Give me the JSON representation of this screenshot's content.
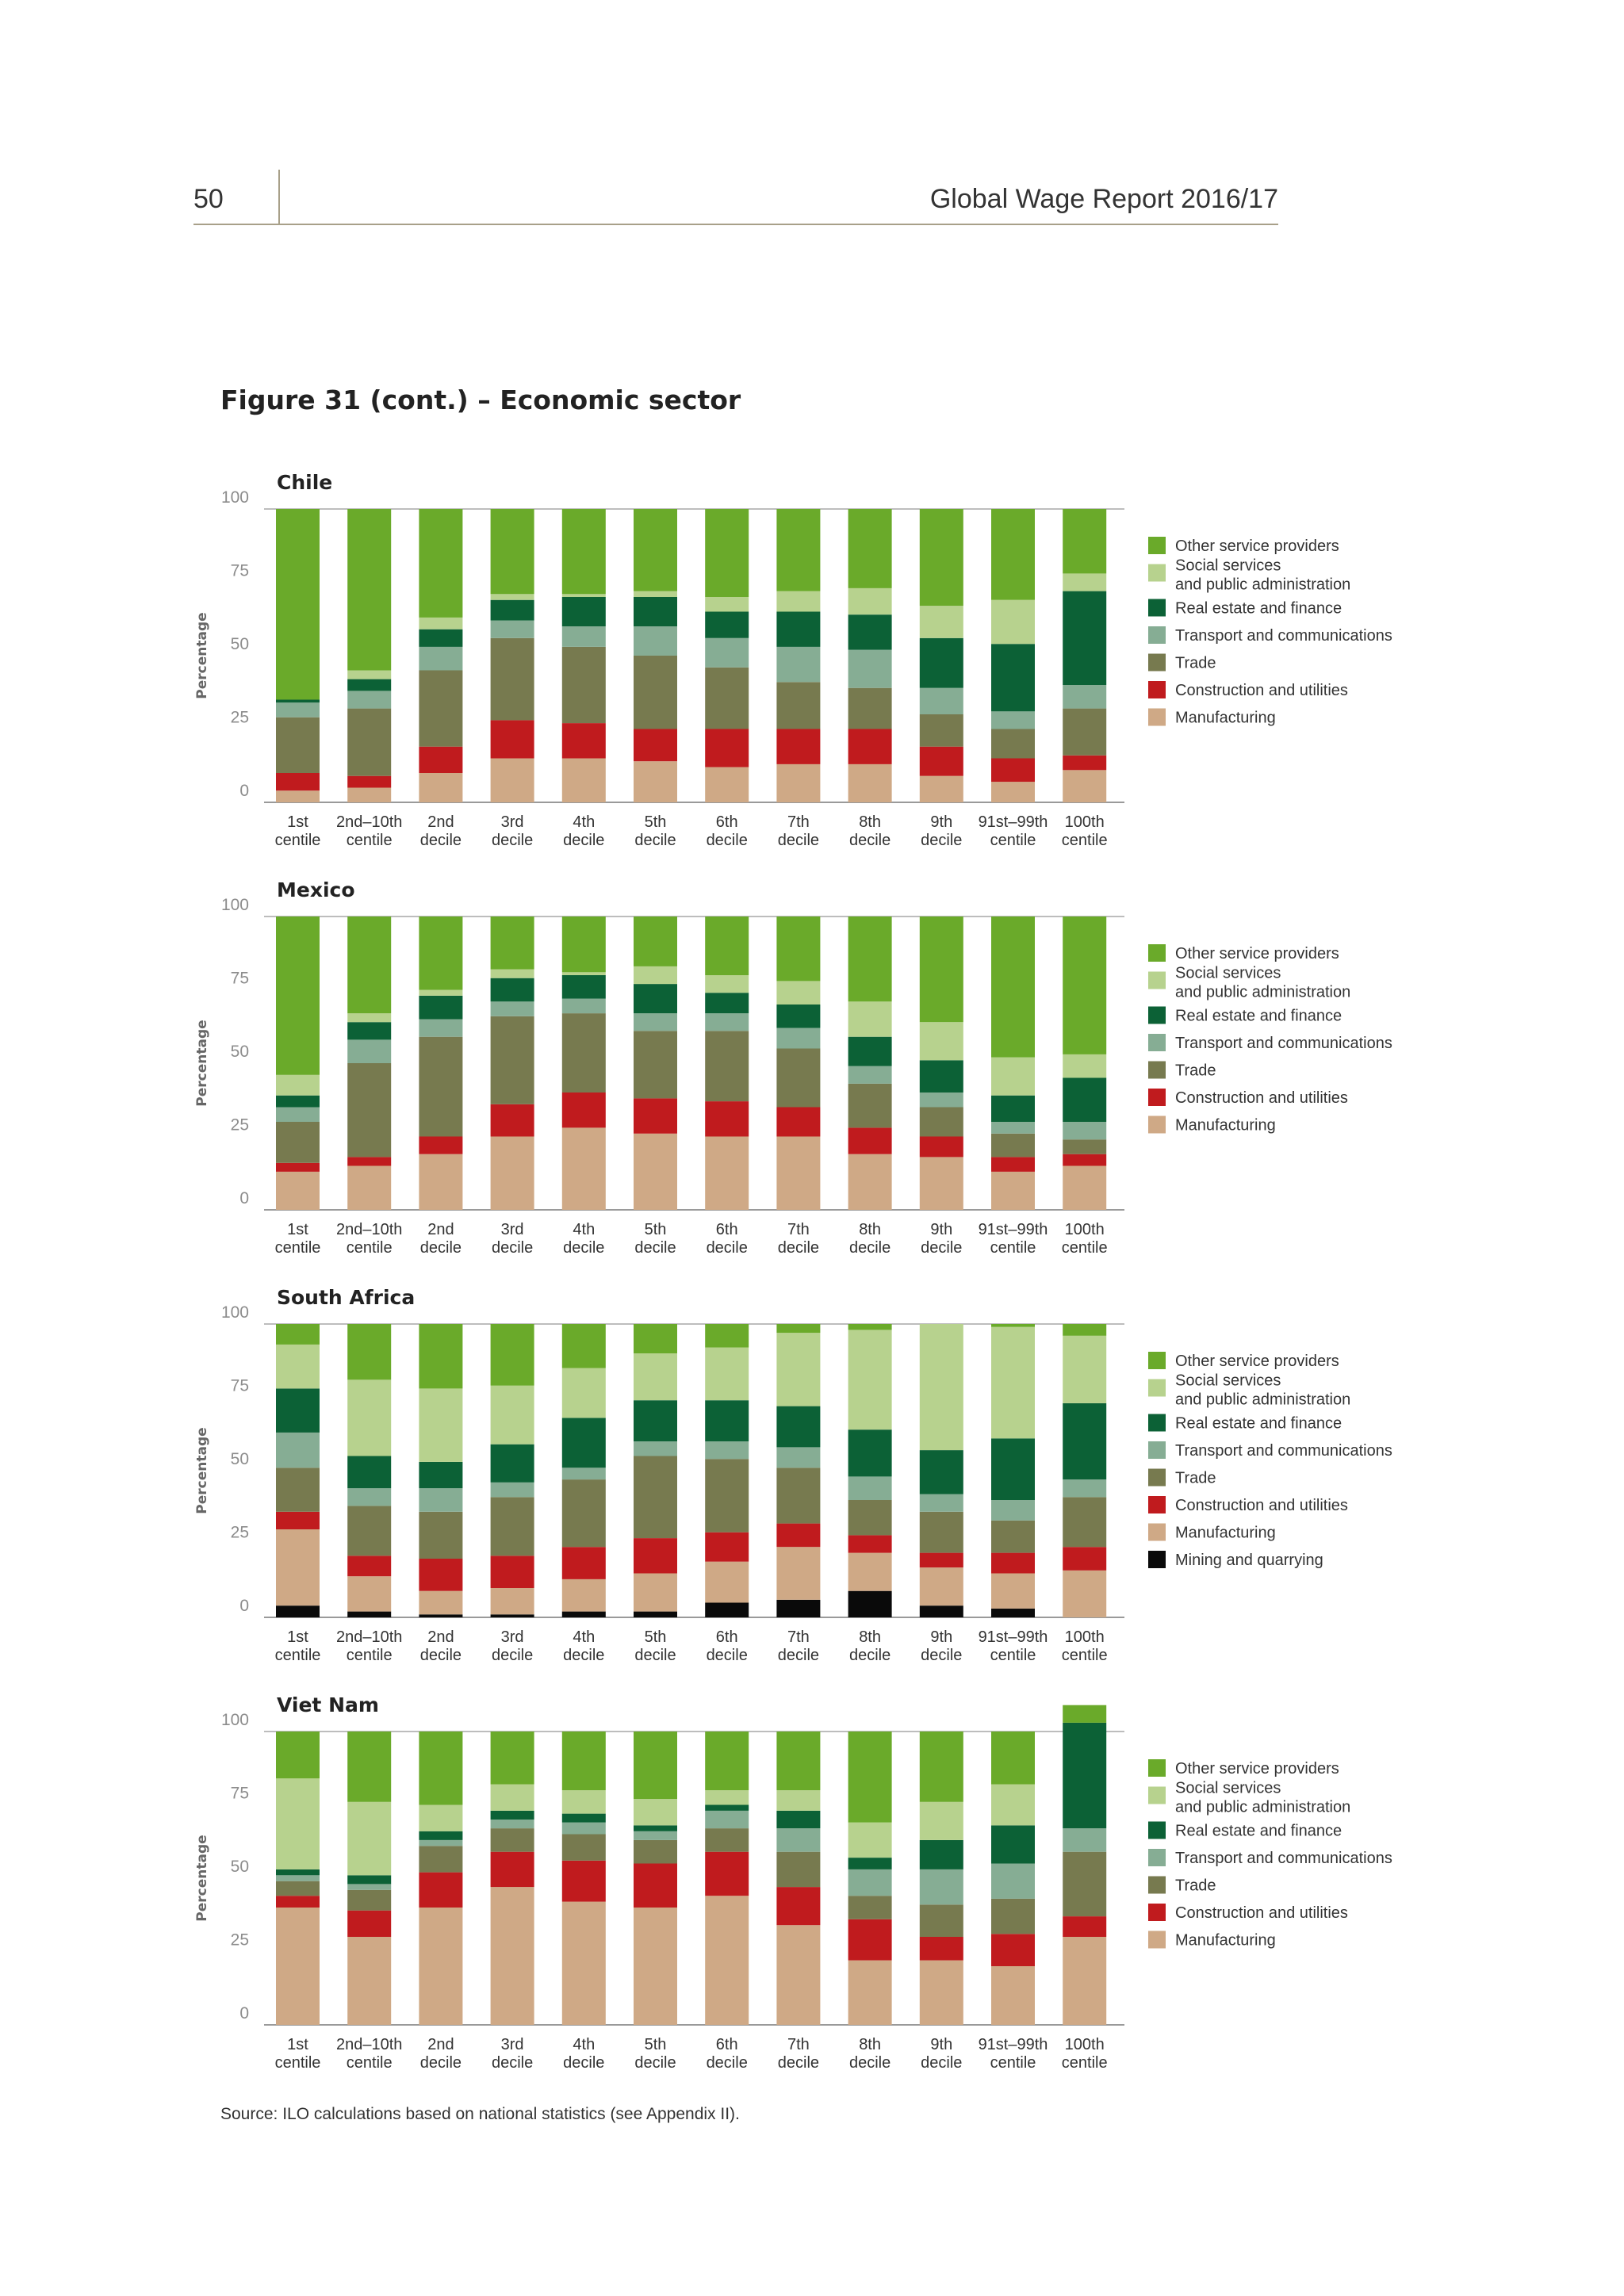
{
  "header": {
    "page_number": "50",
    "running_title": "Global Wage Report 2016/17"
  },
  "figure_title": "Figure 31 (cont.) – Economic sector",
  "source": "Source: ILO calculations based on national statistics (see Appendix II).",
  "colors": {
    "Other service providers": "#6aaa2a",
    "Social services and public administration": "#b7d28e",
    "Real estate and finance": "#0c6136",
    "Transport and communications": "#86ad94",
    "Trade": "#777a4f",
    "Construction and utilities": "#c01b1e",
    "Manufacturing": "#cfa986",
    "Mining and quarrying": "#0a0a0a"
  },
  "chart_data": [
    {
      "type": "bar",
      "stacked": true,
      "title": "Chile",
      "ylabel": "Percentage",
      "ylim": [
        0,
        100
      ],
      "yticks": [
        0,
        25,
        50,
        75,
        100
      ],
      "categories": [
        [
          "1st",
          "centile"
        ],
        [
          "2nd–10th",
          "centile"
        ],
        [
          "2nd",
          "decile"
        ],
        [
          "3rd",
          "decile"
        ],
        [
          "4th",
          "decile"
        ],
        [
          "5th",
          "decile"
        ],
        [
          "6th",
          "decile"
        ],
        [
          "7th",
          "decile"
        ],
        [
          "8th",
          "decile"
        ],
        [
          "9th",
          "decile"
        ],
        [
          "91st–99th",
          "centile"
        ],
        [
          "100th",
          "centile"
        ]
      ],
      "legend": [
        "Other service providers",
        [
          "Social services",
          "and public administration"
        ],
        "Real estate and finance",
        "Transport and communications",
        "Trade",
        "Construction and utilities",
        "Manufacturing"
      ],
      "series": [
        {
          "name": "Manufacturing",
          "values": [
            4,
            5,
            10,
            15,
            15,
            14,
            12,
            13,
            13,
            9,
            7,
            11
          ]
        },
        {
          "name": "Construction and utilities",
          "values": [
            6,
            4,
            9,
            13,
            12,
            11,
            13,
            12,
            12,
            10,
            8,
            5
          ]
        },
        {
          "name": "Trade",
          "values": [
            19,
            23,
            26,
            28,
            26,
            25,
            21,
            16,
            14,
            11,
            10,
            16
          ]
        },
        {
          "name": "Transport and communications",
          "values": [
            5,
            6,
            8,
            6,
            7,
            10,
            10,
            12,
            13,
            9,
            6,
            8
          ]
        },
        {
          "name": "Real estate and finance",
          "values": [
            1,
            4,
            6,
            7,
            10,
            10,
            9,
            12,
            12,
            17,
            23,
            32
          ]
        },
        {
          "name": "Social services and public administration",
          "values": [
            0,
            3,
            4,
            2,
            1,
            2,
            5,
            7,
            9,
            11,
            15,
            6
          ]
        },
        {
          "name": "Other service providers",
          "values": [
            65,
            55,
            37,
            29,
            29,
            28,
            30,
            28,
            27,
            33,
            31,
            22
          ]
        }
      ]
    },
    {
      "type": "bar",
      "stacked": true,
      "title": "Mexico",
      "ylabel": "Percentage",
      "ylim": [
        0,
        100
      ],
      "yticks": [
        0,
        25,
        50,
        75,
        100
      ],
      "categories": [
        [
          "1st",
          "centile"
        ],
        [
          "2nd–10th",
          "centile"
        ],
        [
          "2nd",
          "decile"
        ],
        [
          "3rd",
          "decile"
        ],
        [
          "4th",
          "decile"
        ],
        [
          "5th",
          "decile"
        ],
        [
          "6th",
          "decile"
        ],
        [
          "7th",
          "decile"
        ],
        [
          "8th",
          "decile"
        ],
        [
          "9th",
          "decile"
        ],
        [
          "91st–99th",
          "centile"
        ],
        [
          "100th",
          "centile"
        ]
      ],
      "legend": [
        "Other service providers",
        [
          "Social services",
          "and public administration"
        ],
        "Real estate and finance",
        "Transport and communications",
        "Trade",
        "Construction and utilities",
        "Manufacturing"
      ],
      "series": [
        {
          "name": "Manufacturing",
          "values": [
            13,
            15,
            19,
            25,
            28,
            26,
            25,
            25,
            19,
            18,
            13,
            15
          ]
        },
        {
          "name": "Construction and utilities",
          "values": [
            3,
            3,
            6,
            11,
            12,
            12,
            12,
            10,
            9,
            7,
            5,
            4
          ]
        },
        {
          "name": "Trade",
          "values": [
            14,
            32,
            34,
            30,
            27,
            23,
            24,
            20,
            15,
            10,
            8,
            5
          ]
        },
        {
          "name": "Transport and communications",
          "values": [
            5,
            8,
            6,
            5,
            5,
            6,
            6,
            7,
            6,
            5,
            4,
            6
          ]
        },
        {
          "name": "Real estate and finance",
          "values": [
            4,
            6,
            8,
            8,
            8,
            10,
            7,
            8,
            10,
            11,
            9,
            15
          ]
        },
        {
          "name": "Social services and public administration",
          "values": [
            7,
            3,
            2,
            3,
            1,
            6,
            6,
            8,
            12,
            13,
            13,
            8
          ]
        },
        {
          "name": "Other service providers",
          "values": [
            54,
            33,
            25,
            18,
            19,
            17,
            20,
            22,
            29,
            36,
            48,
            47
          ]
        }
      ]
    },
    {
      "type": "bar",
      "stacked": true,
      "title": "South Africa",
      "ylabel": "Percentage",
      "ylim": [
        0,
        100
      ],
      "yticks": [
        0,
        25,
        50,
        75,
        100
      ],
      "categories": [
        [
          "1st",
          "centile"
        ],
        [
          "2nd–10th",
          "centile"
        ],
        [
          "2nd",
          "decile"
        ],
        [
          "3rd",
          "decile"
        ],
        [
          "4th",
          "decile"
        ],
        [
          "5th",
          "decile"
        ],
        [
          "6th",
          "decile"
        ],
        [
          "7th",
          "decile"
        ],
        [
          "8th",
          "decile"
        ],
        [
          "9th",
          "decile"
        ],
        [
          "91st–99th",
          "centile"
        ],
        [
          "100th",
          "centile"
        ]
      ],
      "legend": [
        "Other service providers",
        [
          "Social services",
          "and public administration"
        ],
        "Real estate and finance",
        "Transport and communications",
        "Trade",
        "Construction and utilities",
        "Manufacturing",
        "Mining and quarrying"
      ],
      "series": [
        {
          "name": "Mining and quarrying",
          "values": [
            4,
            2,
            1,
            1,
            2,
            2,
            5,
            6,
            9,
            4,
            3,
            0
          ]
        },
        {
          "name": "Manufacturing",
          "values": [
            26,
            12,
            8,
            9,
            11,
            13,
            14,
            18,
            13,
            13,
            12,
            16
          ]
        },
        {
          "name": "Construction and utilities",
          "values": [
            6,
            7,
            11,
            11,
            11,
            12,
            10,
            8,
            6,
            5,
            7,
            8
          ]
        },
        {
          "name": "Trade",
          "values": [
            15,
            17,
            16,
            20,
            23,
            28,
            25,
            19,
            12,
            14,
            11,
            17
          ]
        },
        {
          "name": "Transport and communications",
          "values": [
            12,
            6,
            8,
            5,
            4,
            5,
            6,
            7,
            8,
            6,
            7,
            6
          ]
        },
        {
          "name": "Real estate and finance",
          "values": [
            15,
            11,
            9,
            13,
            17,
            14,
            14,
            14,
            16,
            15,
            21,
            26
          ]
        },
        {
          "name": "Social services and public administration",
          "values": [
            15,
            26,
            25,
            20,
            17,
            16,
            18,
            25,
            34,
            43,
            38,
            23
          ]
        },
        {
          "name": "Other service providers",
          "values": [
            7,
            19,
            22,
            21,
            15,
            10,
            8,
            3,
            2,
            0,
            1,
            4
          ]
        }
      ]
    },
    {
      "type": "bar",
      "stacked": true,
      "title": "Viet Nam",
      "ylabel": "Percentage",
      "ylim": [
        0,
        100
      ],
      "yticks": [
        0,
        25,
        50,
        75,
        100
      ],
      "categories": [
        [
          "1st",
          "centile"
        ],
        [
          "2nd–10th",
          "centile"
        ],
        [
          "2nd",
          "decile"
        ],
        [
          "3rd",
          "decile"
        ],
        [
          "4th",
          "decile"
        ],
        [
          "5th",
          "decile"
        ],
        [
          "6th",
          "decile"
        ],
        [
          "7th",
          "decile"
        ],
        [
          "8th",
          "decile"
        ],
        [
          "9th",
          "decile"
        ],
        [
          "91st–99th",
          "centile"
        ],
        [
          "100th",
          "centile"
        ]
      ],
      "legend": [
        "Other service providers",
        [
          "Social services",
          "and public administration"
        ],
        "Real estate and finance",
        "Transport and communications",
        "Trade",
        "Construction and utilities",
        "Manufacturing"
      ],
      "series": [
        {
          "name": "Manufacturing",
          "values": [
            40,
            30,
            40,
            47,
            42,
            40,
            44,
            34,
            22,
            22,
            20,
            30
          ]
        },
        {
          "name": "Construction and utilities",
          "values": [
            4,
            9,
            12,
            12,
            14,
            15,
            15,
            13,
            14,
            8,
            11,
            7
          ]
        },
        {
          "name": "Trade",
          "values": [
            5,
            7,
            9,
            8,
            9,
            8,
            8,
            12,
            8,
            11,
            12,
            22
          ]
        },
        {
          "name": "Transport and communications",
          "values": [
            2,
            2,
            2,
            3,
            4,
            3,
            6,
            8,
            9,
            12,
            12,
            8
          ]
        },
        {
          "name": "Real estate and finance",
          "values": [
            2,
            3,
            3,
            3,
            3,
            2,
            2,
            6,
            4,
            10,
            13,
            36
          ]
        },
        {
          "name": "Social services and public administration",
          "values": [
            31,
            25,
            9,
            9,
            8,
            9,
            5,
            7,
            12,
            13,
            14,
            0
          ]
        },
        {
          "name": "Other service providers",
          "values": [
            16,
            24,
            25,
            18,
            20,
            23,
            20,
            20,
            31,
            24,
            18,
            6
          ]
        }
      ]
    }
  ]
}
